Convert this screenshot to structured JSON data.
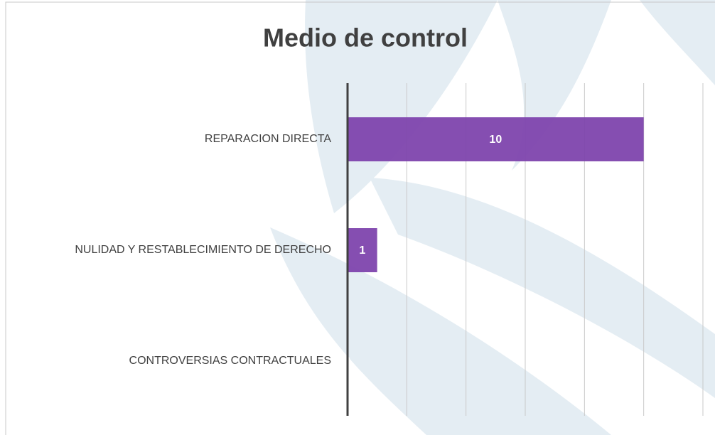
{
  "chart_data": {
    "type": "bar",
    "orientation": "horizontal",
    "title": "Medio de control",
    "categories": [
      "REPARACION DIRECTA",
      "NULIDAD Y RESTABLECIMIENTO DE DERECHO",
      "CONTROVERSIAS CONTRACTUALES"
    ],
    "values": [
      10,
      1,
      0
    ],
    "color": "#7e44ad",
    "xlim": [
      0,
      12
    ],
    "xticks": [
      0,
      2,
      4,
      6,
      8,
      10,
      12
    ],
    "grid": true
  }
}
